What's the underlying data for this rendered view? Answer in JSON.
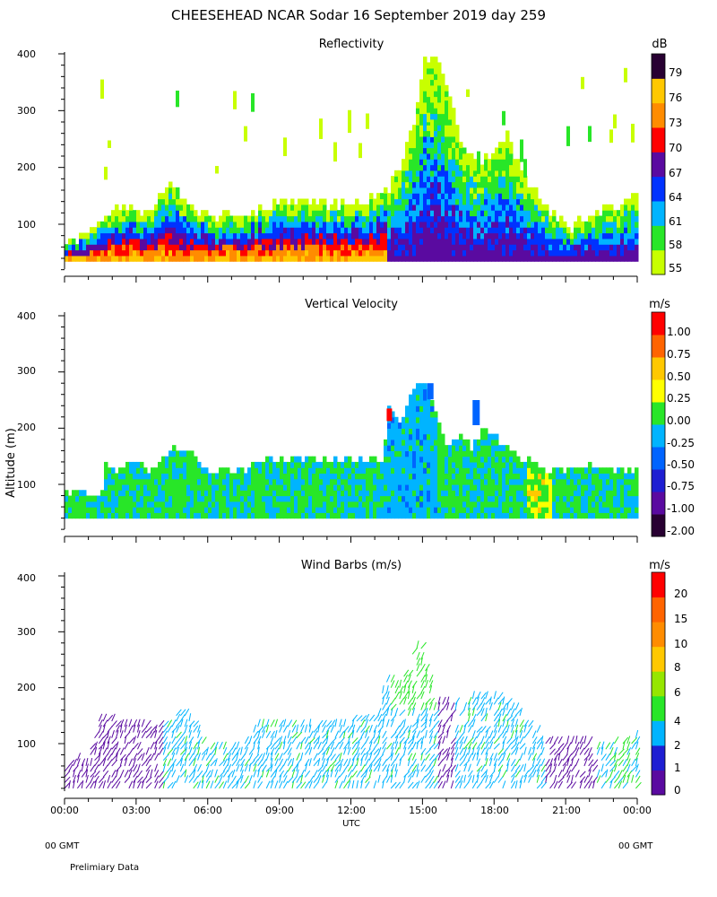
{
  "title": "CHEESEHEAD  NCAR Sodar  16 September 2019  day 259",
  "x_axis": {
    "label": "UTC",
    "ticks": [
      "00:00",
      "03:00",
      "06:00",
      "09:00",
      "12:00",
      "15:00",
      "18:00",
      "21:00",
      "00:00"
    ],
    "range_hours": [
      0,
      24
    ],
    "left_note": "00 GMT",
    "right_note": "00 GMT"
  },
  "y_axis": {
    "label": "Altitude (m)",
    "ticks": [
      "100",
      "200",
      "300",
      "400"
    ],
    "range": [
      0,
      400
    ]
  },
  "footer": "Prelimiary Data",
  "panels": {
    "reflectivity": {
      "title": "Reflectivity",
      "unit": "dB",
      "colorbar": {
        "labels": [
          "55",
          "58",
          "61",
          "64",
          "67",
          "70",
          "73",
          "76",
          "79"
        ],
        "colors": [
          "#c8ff00",
          "#28e628",
          "#00b4ff",
          "#0032ff",
          "#5a0aa0",
          "#ff0000",
          "#ff8c00",
          "#ffc800",
          "#280032"
        ]
      }
    },
    "velocity": {
      "title": "Vertical Velocity",
      "unit": "m/s",
      "colorbar": {
        "labels": [
          "-2.00",
          "-1.00",
          "-0.75",
          "-0.50",
          "-0.25",
          "0.00",
          "0.25",
          "0.50",
          "0.75",
          "1.00"
        ],
        "colors": [
          "#280032",
          "#5a0aa0",
          "#1e1ed2",
          "#0064ff",
          "#00b4ff",
          "#28e628",
          "#ffff00",
          "#ffc800",
          "#ff6400",
          "#ff0000"
        ]
      }
    },
    "wind": {
      "title": "Wind Barbs (m/s)",
      "unit": "m/s",
      "colorbar": {
        "labels": [
          "0",
          "1",
          "2",
          "4",
          "6",
          "8",
          "10",
          "15",
          "20"
        ],
        "colors": [
          "#5a0aa0",
          "#1e1ed2",
          "#00b4ff",
          "#28e628",
          "#96e600",
          "#ffc800",
          "#ff8c00",
          "#ff6400",
          "#ff0000"
        ]
      }
    }
  },
  "chart_data": [
    {
      "type": "heatmap",
      "title": "Reflectivity",
      "xlabel": "UTC",
      "ylabel": "Altitude (m)",
      "xlim": [
        0,
        24
      ],
      "ylim": [
        0,
        400
      ],
      "unit": "dB",
      "ceiling_profile_height_m": [
        [
          0,
          65
        ],
        [
          0.5,
          70
        ],
        [
          1,
          80
        ],
        [
          1.5,
          105
        ],
        [
          2,
          120
        ],
        [
          2.5,
          130
        ],
        [
          3,
          110
        ],
        [
          3.5,
          125
        ],
        [
          4,
          150
        ],
        [
          4.5,
          165
        ],
        [
          5,
          140
        ],
        [
          5.5,
          120
        ],
        [
          6,
          110
        ],
        [
          7,
          115
        ],
        [
          8,
          120
        ],
        [
          9,
          135
        ],
        [
          10,
          140
        ],
        [
          11,
          130
        ],
        [
          12,
          135
        ],
        [
          13,
          140
        ],
        [
          13.5,
          160
        ],
        [
          14,
          200
        ],
        [
          14.5,
          260
        ],
        [
          15,
          380
        ],
        [
          15.5,
          400
        ],
        [
          16,
          330
        ],
        [
          16.5,
          240
        ],
        [
          17,
          220
        ],
        [
          17.5,
          210
        ],
        [
          18,
          230
        ],
        [
          18.5,
          250
        ],
        [
          19,
          200
        ],
        [
          19.5,
          160
        ],
        [
          20,
          140
        ],
        [
          20.5,
          110
        ],
        [
          21,
          90
        ],
        [
          21.5,
          100
        ],
        [
          22,
          115
        ],
        [
          22.5,
          120
        ],
        [
          23,
          130
        ],
        [
          23.5,
          140
        ],
        [
          24,
          160
        ]
      ]
    },
    {
      "type": "heatmap",
      "title": "Vertical Velocity",
      "xlabel": "UTC",
      "ylabel": "Altitude (m)",
      "xlim": [
        0,
        24
      ],
      "ylim": [
        0,
        400
      ],
      "unit": "m/s",
      "data_top_m": [
        [
          0,
          80
        ],
        [
          1.5,
          80
        ],
        [
          1.6,
          140
        ],
        [
          2,
          120
        ],
        [
          2.5,
          130
        ],
        [
          3,
          140
        ],
        [
          3.5,
          120
        ],
        [
          4,
          140
        ],
        [
          4.5,
          160
        ],
        [
          5,
          160
        ],
        [
          5.5,
          140
        ],
        [
          6,
          120
        ],
        [
          7.5,
          120
        ],
        [
          8,
          140
        ],
        [
          12,
          140
        ],
        [
          13.3,
          140
        ],
        [
          13.5,
          240
        ],
        [
          14,
          200
        ],
        [
          14.5,
          260
        ],
        [
          15,
          280
        ],
        [
          15.5,
          220
        ],
        [
          16,
          160
        ],
        [
          16.5,
          180
        ],
        [
          17,
          160
        ],
        [
          17.5,
          200
        ],
        [
          18,
          180
        ],
        [
          18.5,
          160
        ],
        [
          19,
          140
        ],
        [
          19.5,
          140
        ],
        [
          20,
          120
        ],
        [
          21,
          120
        ],
        [
          22,
          130
        ],
        [
          23,
          120
        ],
        [
          24,
          120
        ]
      ]
    },
    {
      "type": "scatter",
      "title": "Wind Barbs (m/s)",
      "xlabel": "UTC",
      "ylabel": "Altitude (m)",
      "xlim": [
        0,
        24
      ],
      "ylim": [
        0,
        400
      ],
      "unit": "m/s",
      "barb_top_m": [
        [
          0,
          60
        ],
        [
          1,
          80
        ],
        [
          1.5,
          150
        ],
        [
          2,
          140
        ],
        [
          3,
          130
        ],
        [
          4,
          140
        ],
        [
          4.5,
          150
        ],
        [
          5,
          160
        ],
        [
          6,
          100
        ],
        [
          7.5,
          100
        ],
        [
          8,
          140
        ],
        [
          12,
          140
        ],
        [
          13,
          150
        ],
        [
          13.5,
          220
        ],
        [
          14,
          200
        ],
        [
          14.5,
          260
        ],
        [
          15,
          280
        ],
        [
          15.5,
          170
        ],
        [
          16,
          180
        ],
        [
          17,
          180
        ],
        [
          18,
          190
        ],
        [
          19,
          160
        ],
        [
          20,
          110
        ],
        [
          21,
          110
        ],
        [
          22,
          100
        ],
        [
          23,
          100
        ],
        [
          24,
          120
        ]
      ]
    }
  ]
}
